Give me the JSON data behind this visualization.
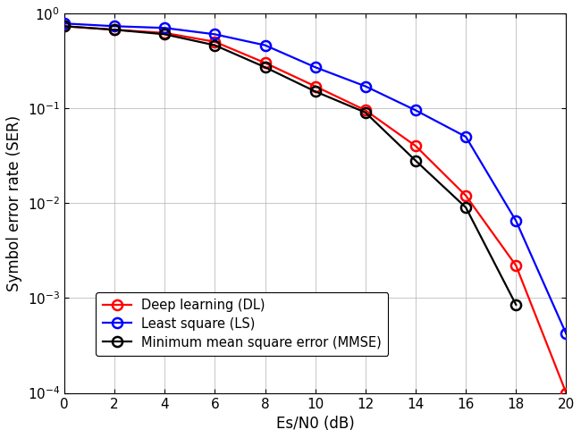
{
  "x": [
    0,
    2,
    4,
    6,
    8,
    10,
    12,
    14,
    16,
    18,
    20
  ],
  "DL": [
    0.73,
    0.67,
    0.62,
    0.5,
    0.3,
    0.17,
    0.095,
    0.04,
    0.012,
    0.0022,
    0.0001
  ],
  "LS": [
    0.78,
    0.73,
    0.7,
    0.6,
    0.46,
    0.27,
    0.17,
    0.095,
    0.05,
    0.0065,
    0.00042
  ],
  "MMSE": [
    0.73,
    0.67,
    0.6,
    0.46,
    0.27,
    0.15,
    0.09,
    0.028,
    0.009,
    0.00085,
    null
  ],
  "DL_color": "#FF0000",
  "LS_color": "#0000FF",
  "MMSE_color": "#000000",
  "xlabel": "Es/N0 (dB)",
  "ylabel": "Symbol error rate (SER)",
  "xlim": [
    0,
    20
  ],
  "ylim_log": [
    -4,
    0
  ],
  "legend_DL": "Deep learning (DL)",
  "legend_LS": "Least square (LS)",
  "legend_MMSE": "Minimum mean square error (MMSE)",
  "marker": "o",
  "markersize": 8,
  "linewidth": 1.6,
  "bg_color": "#ffffff",
  "grid_color": "#b0b0b0",
  "figsize": [
    6.5,
    4.9
  ],
  "dpi": 100
}
